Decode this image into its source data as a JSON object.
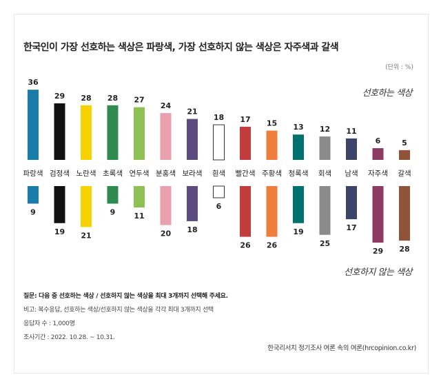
{
  "chart_data": {
    "type": "bar",
    "title": "한국인이 가장 선호하는 색상은 파랑색, 가장 선호하지 않는 색상은 자주색과 갈색",
    "unit_label": "(단위 : %)",
    "categories": [
      "파랑색",
      "검정색",
      "노란색",
      "초록색",
      "연두색",
      "분홍색",
      "보라색",
      "흰색",
      "빨간색",
      "주황색",
      "청록색",
      "회색",
      "남색",
      "자주색",
      "갈색"
    ],
    "colors": [
      "#1b7ba9",
      "#111111",
      "#f6d200",
      "#2f8a4f",
      "#8dc153",
      "#e9a2ad",
      "#5d4b80",
      "#ffffff",
      "#c13c3d",
      "#ef7e3d",
      "#00716f",
      "#8b8b8b",
      "#3c4567",
      "#8d3b63",
      "#8f5337"
    ],
    "series": [
      {
        "name": "선호하는 색상",
        "values": [
          36,
          29,
          28,
          28,
          27,
          24,
          21,
          18,
          17,
          15,
          13,
          12,
          11,
          6,
          5
        ]
      },
      {
        "name": "선호하지 않는 색상",
        "values": [
          9,
          19,
          21,
          9,
          11,
          20,
          18,
          6,
          26,
          26,
          19,
          25,
          17,
          29,
          28
        ]
      }
    ],
    "ylim": [
      0,
      36
    ]
  },
  "notes": {
    "question": "질문: 다음 중 선호하는 색상 / 선호하지 않는 색상을 최대 3개까지 선택해 주세요.",
    "remark": "비고: 복수응답, 선호하는 색상/선호하지 않는 색상을 각각 최대 3개까지 선택",
    "respondents": "응답자 수 : 1,000명",
    "period": "조사기간 : 2022. 10.28. ~ 10.31."
  },
  "source": "한국리서치 정기조사 여론 속의 여론(hrcopinion.co.kr)"
}
